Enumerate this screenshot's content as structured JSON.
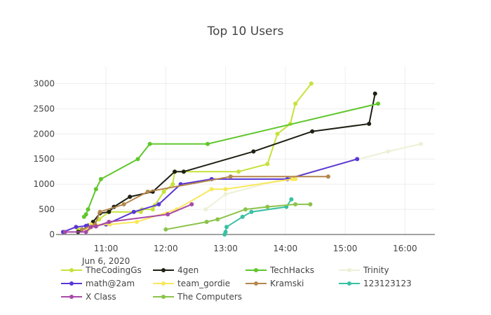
{
  "chart_data": {
    "type": "line",
    "title": "Top 10 Users",
    "xlabel": "",
    "ylabel": "",
    "x_tick_labels": [
      "11:00",
      "12:00",
      "13:00",
      "14:00",
      "15:00",
      "16:00"
    ],
    "x_axis_date_label": "Jun 6, 2020",
    "x_range": [
      "10:10",
      "16:30"
    ],
    "y_range": [
      0,
      3200
    ],
    "y_ticks": [
      0,
      500,
      1000,
      1500,
      2000,
      2500,
      3000
    ],
    "grid": true,
    "legend_position": "bottom",
    "series": [
      {
        "name": "TheCodingGs",
        "color": "#c6e23a",
        "points": [
          [
            "10:32",
            100
          ],
          [
            "10:43",
            120
          ],
          [
            "10:47",
            200
          ],
          [
            "10:53",
            300
          ],
          [
            "11:03",
            450
          ],
          [
            "11:35",
            450
          ],
          [
            "11:36",
            500
          ],
          [
            "11:47",
            500
          ],
          [
            "11:49",
            580
          ],
          [
            "11:58",
            850
          ],
          [
            "12:07",
            1000
          ],
          [
            "12:09",
            1250
          ],
          [
            "12:18",
            1250
          ],
          [
            "13:13",
            1250
          ],
          [
            "13:42",
            1400
          ],
          [
            "13:52",
            2000
          ],
          [
            "14:05",
            2200
          ],
          [
            "14:10",
            2600
          ],
          [
            "14:26",
            3000
          ]
        ]
      },
      {
        "name": "4gen",
        "color": "#1f1f14",
        "points": [
          [
            "10:32",
            50
          ],
          [
            "10:42",
            150
          ],
          [
            "10:47",
            250
          ],
          [
            "10:54",
            420
          ],
          [
            "11:03",
            450
          ],
          [
            "11:08",
            550
          ],
          [
            "11:24",
            750
          ],
          [
            "11:47",
            850
          ],
          [
            "12:09",
            1250
          ],
          [
            "12:18",
            1250
          ],
          [
            "13:28",
            1650
          ],
          [
            "14:27",
            2050
          ],
          [
            "15:24",
            2200
          ],
          [
            "15:30",
            2800
          ]
        ]
      },
      {
        "name": "TechHacks",
        "color": "#5fc72c",
        "points": [
          [
            "10:38",
            350
          ],
          [
            "10:40",
            400
          ],
          [
            "10:42",
            500
          ],
          [
            "10:50",
            900
          ],
          [
            "10:55",
            1100
          ],
          [
            "11:32",
            1500
          ],
          [
            "11:44",
            1800
          ],
          [
            "12:42",
            1800
          ],
          [
            "15:33",
            2600
          ]
        ]
      },
      {
        "name": "Trinity",
        "color": "#eef0d6",
        "points": [
          [
            "12:40",
            500
          ],
          [
            "13:00",
            800
          ],
          [
            "15:43",
            1650
          ],
          [
            "16:16",
            1800
          ]
        ]
      },
      {
        "name": "math@2am",
        "color": "#5a36d6",
        "points": [
          [
            "10:17",
            50
          ],
          [
            "10:30",
            150
          ],
          [
            "10:40",
            170
          ],
          [
            "10:42",
            180
          ],
          [
            "11:00",
            200
          ],
          [
            "11:28",
            450
          ],
          [
            "11:53",
            600
          ],
          [
            "12:15",
            1000
          ],
          [
            "12:46",
            1100
          ],
          [
            "14:02",
            1100
          ],
          [
            "15:12",
            1500
          ]
        ]
      },
      {
        "name": "team_gordie",
        "color": "#f8e85c",
        "points": [
          [
            "10:42",
            100
          ],
          [
            "10:45",
            200
          ],
          [
            "11:04",
            200
          ],
          [
            "11:31",
            250
          ],
          [
            "12:11",
            500
          ],
          [
            "12:46",
            900
          ],
          [
            "13:00",
            900
          ],
          [
            "14:07",
            1100
          ],
          [
            "14:10",
            1100
          ]
        ]
      },
      {
        "name": "Kramski",
        "color": "#b3874b",
        "points": [
          [
            "10:36",
            100
          ],
          [
            "10:49",
            200
          ],
          [
            "10:54",
            450
          ],
          [
            "11:18",
            600
          ],
          [
            "11:42",
            850
          ],
          [
            "13:05",
            1150
          ],
          [
            "14:43",
            1150
          ]
        ]
      },
      {
        "name": "123123123",
        "color": "#38c0a3",
        "points": [
          [
            "12:59",
            0
          ],
          [
            "13:00",
            50
          ],
          [
            "13:01",
            150
          ],
          [
            "13:17",
            350
          ],
          [
            "13:26",
            450
          ],
          [
            "14:01",
            550
          ],
          [
            "14:06",
            700
          ]
        ]
      },
      {
        "name": "X Class",
        "color": "#a849a8",
        "points": [
          [
            "10:19",
            50
          ],
          [
            "10:40",
            50
          ],
          [
            "10:45",
            150
          ],
          [
            "10:50",
            160
          ],
          [
            "11:03",
            250
          ],
          [
            "12:02",
            400
          ],
          [
            "12:26",
            600
          ]
        ]
      },
      {
        "name": "The Computers",
        "color": "#8bc34a",
        "points": [
          [
            "12:00",
            100
          ],
          [
            "12:41",
            250
          ],
          [
            "12:52",
            300
          ],
          [
            "13:20",
            500
          ],
          [
            "13:42",
            550
          ],
          [
            "14:10",
            600
          ],
          [
            "14:25",
            600
          ]
        ]
      }
    ]
  }
}
